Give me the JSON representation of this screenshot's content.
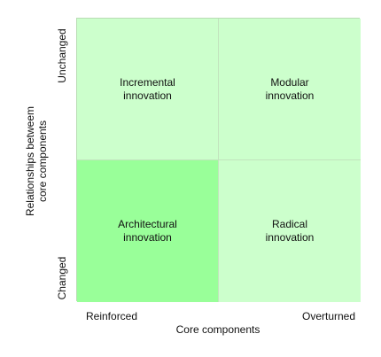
{
  "colors": {
    "light_cell": "#ccffcc",
    "highlight_cell": "#99ff99"
  },
  "quadrants": {
    "top_left": {
      "label": "Incremental\ninnovation"
    },
    "top_right": {
      "label": "Modular\ninnovation"
    },
    "bottom_left": {
      "label": "Architectural\ninnovation"
    },
    "bottom_right": {
      "label": "Radical\ninnovation"
    }
  },
  "x_axis": {
    "title": "Core components",
    "low": "Reinforced",
    "high": "Overturned"
  },
  "y_axis": {
    "title": "Relationships betweem\ncore components",
    "top": "Unchanged",
    "bottom": "Changed"
  }
}
